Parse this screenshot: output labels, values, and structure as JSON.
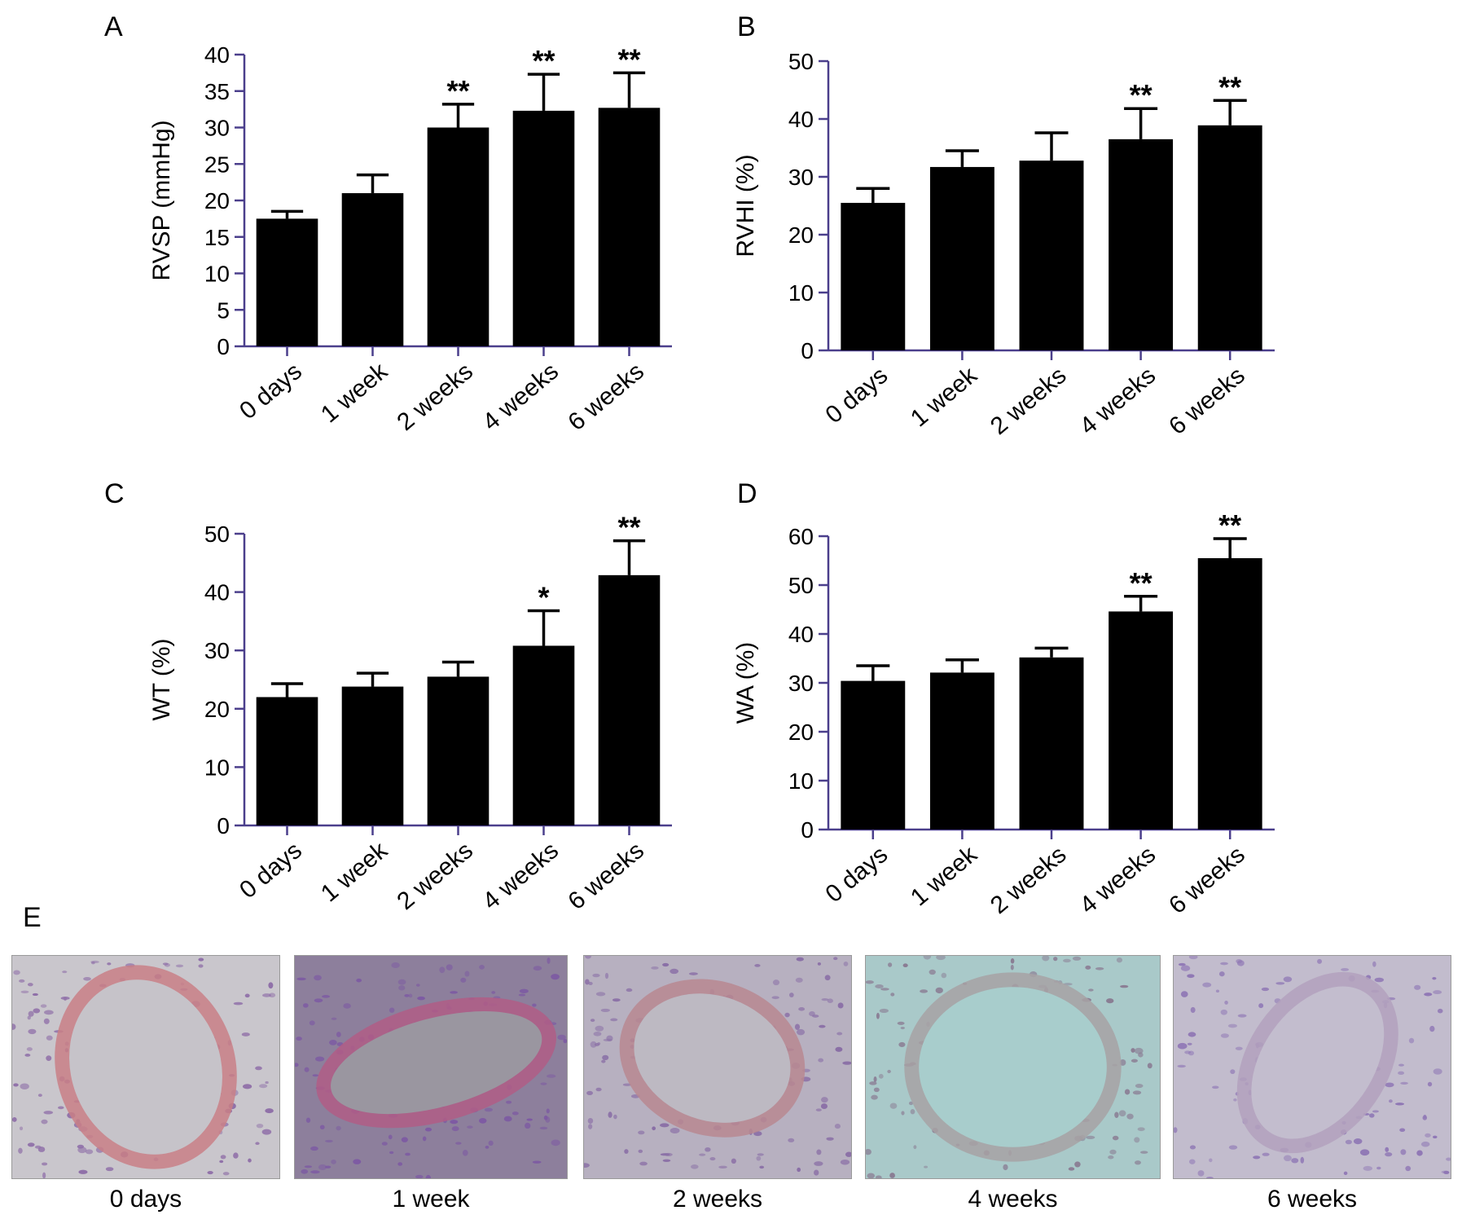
{
  "panel_letters": {
    "a": "A",
    "b": "B",
    "c": "C",
    "d": "D",
    "e": "E"
  },
  "chart_data": [
    {
      "type": "bar",
      "panel": "A",
      "categories": [
        "0 days",
        "1 week",
        "2 weeks",
        "4 weeks",
        "6 weeks"
      ],
      "values": [
        17.5,
        21.0,
        30.0,
        32.3,
        32.7
      ],
      "errors": [
        1.0,
        2.5,
        3.2,
        5.0,
        4.8
      ],
      "significance": [
        "",
        "",
        "**",
        "**",
        "**"
      ],
      "title": "",
      "xlabel": "",
      "ylabel": "RVSP (mmHg)",
      "ylim": [
        0,
        40
      ],
      "yticks": [
        0,
        5,
        10,
        15,
        20,
        25,
        30,
        35,
        40
      ],
      "bar_color": "#000000",
      "axis_color": "#4b3f8c",
      "grid": false,
      "legend": "none"
    },
    {
      "type": "bar",
      "panel": "B",
      "categories": [
        "0 days",
        "1 week",
        "2 weeks",
        "4 weeks",
        "6 weeks"
      ],
      "values": [
        25.5,
        31.7,
        32.8,
        36.5,
        38.9
      ],
      "errors": [
        2.5,
        2.8,
        4.8,
        5.3,
        4.3
      ],
      "significance": [
        "",
        "",
        "",
        "**",
        "**"
      ],
      "title": "",
      "xlabel": "",
      "ylabel": "RVHI (%)",
      "ylim": [
        0,
        50
      ],
      "yticks": [
        0,
        10,
        20,
        30,
        40,
        50
      ],
      "bar_color": "#000000",
      "axis_color": "#4b3f8c",
      "grid": false,
      "legend": "none"
    },
    {
      "type": "bar",
      "panel": "C",
      "categories": [
        "0 days",
        "1 week",
        "2 weeks",
        "4 weeks",
        "6 weeks"
      ],
      "values": [
        22.0,
        23.8,
        25.5,
        30.8,
        42.9
      ],
      "errors": [
        2.3,
        2.3,
        2.5,
        6.0,
        5.9
      ],
      "significance": [
        "",
        "",
        "",
        "*",
        "**"
      ],
      "title": "",
      "xlabel": "",
      "ylabel": "WT (%)",
      "ylim": [
        0,
        50
      ],
      "yticks": [
        0,
        10,
        20,
        30,
        40,
        50
      ],
      "bar_color": "#000000",
      "axis_color": "#4b3f8c",
      "grid": false,
      "legend": "none"
    },
    {
      "type": "bar",
      "panel": "D",
      "categories": [
        "0 days",
        "1 week",
        "2 weeks",
        "4 weeks",
        "6 weeks"
      ],
      "values": [
        30.4,
        32.1,
        35.2,
        44.6,
        55.5
      ],
      "errors": [
        3.1,
        2.6,
        1.9,
        3.1,
        4.0
      ],
      "significance": [
        "",
        "",
        "",
        "**",
        "**"
      ],
      "title": "",
      "xlabel": "",
      "ylabel": "WA (%)",
      "ylim": [
        0,
        60
      ],
      "yticks": [
        0,
        10,
        20,
        30,
        40,
        50,
        60
      ],
      "bar_color": "#000000",
      "axis_color": "#4b3f8c",
      "grid": false,
      "legend": "none"
    }
  ],
  "micrographs": [
    {
      "caption": "0 days",
      "bg": "#c9c6cc",
      "tissue": "#8f6fa8",
      "wall": "#c97f86",
      "lumen": "#c6c3c9"
    },
    {
      "caption": "1 week",
      "bg": "#8d7f9c",
      "tissue": "#7d5aa3",
      "wall": "#b05d86",
      "lumen": "#9a96a0"
    },
    {
      "caption": "2 weeks",
      "bg": "#b7b0c0",
      "tissue": "#8a6fa6",
      "wall": "#b98890",
      "lumen": "#bdb9c2"
    },
    {
      "caption": "4 weeks",
      "bg": "#a9c9c9",
      "tissue": "#8a7c93",
      "wall": "#a7a2a4",
      "lumen": "#a8cdcc"
    },
    {
      "caption": "6 weeks",
      "bg": "#c2bccd",
      "tissue": "#8f77b5",
      "wall": "#b3a1bd",
      "lumen": "#c3bdce"
    }
  ]
}
